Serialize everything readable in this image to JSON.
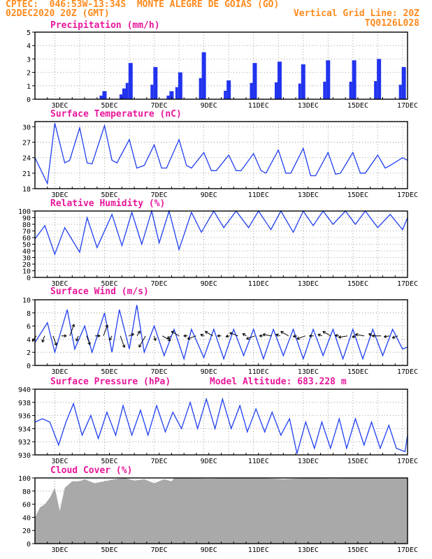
{
  "header": {
    "line1_left": "CPTEC:  046:53W-13:34S  MONTE ALEGRE DE GOIAS (GO)",
    "line2_left": "02DEC2020 20Z (GMT)",
    "line2_right": "Vertical Grid Line: 20Z",
    "line3_right": "TQ0126L028",
    "colors": {
      "header": "#ff8a1e",
      "titles": "#e8179b",
      "series": "#1f3ff0",
      "bars": "#2233ee",
      "cloud": "#a9a9a9",
      "arrows": "#000000"
    }
  },
  "panels": [
    {
      "title": "Precipitation (mm/h)"
    },
    {
      "title": "Surface Temperature (nC)"
    },
    {
      "title": "Relative Humidity (%)"
    },
    {
      "title": "Surface Wind (m/s)"
    },
    {
      "title": "Surface Pressure (hPa)",
      "extra": "Model Altitude: 683.228 m"
    },
    {
      "title": "Cloud Cover (%)"
    }
  ],
  "x_tick_labels": [
    "3DEC",
    "5DEC",
    "7DEC",
    "9DEC",
    "11DEC",
    "13DEC",
    "15DEC",
    "17DEC"
  ],
  "chart_data": [
    {
      "type": "bar",
      "title": "Precipitation (mm/h)",
      "ylim": [
        0,
        5
      ],
      "yticks": [
        "0",
        "1",
        "2",
        "3",
        "4",
        "5"
      ],
      "x": [
        4.8,
        5.6,
        5.85,
        6.85,
        7.5,
        7.85,
        8.8,
        9.8,
        10.85,
        11.85,
        12.8,
        13.8,
        14.85,
        15.85,
        16.85
      ],
      "values": [
        0.6,
        0.8,
        2.7,
        2.4,
        0.6,
        2.0,
        3.5,
        1.4,
        2.7,
        2.8,
        2.6,
        2.9,
        2.9,
        3.0,
        2.4
      ]
    },
    {
      "type": "line",
      "title": "Surface Temperature (nC)",
      "ylim": [
        18,
        31
      ],
      "yticks": [
        "18",
        "21",
        "24",
        "27",
        "30"
      ],
      "x": [
        2.0,
        2.25,
        2.5,
        2.8,
        3.2,
        3.4,
        3.8,
        4.1,
        4.3,
        4.8,
        5.1,
        5.3,
        5.8,
        6.1,
        6.4,
        6.8,
        7.1,
        7.3,
        7.8,
        8.1,
        8.3,
        8.8,
        9.1,
        9.3,
        9.8,
        10.1,
        10.3,
        10.8,
        11.1,
        11.3,
        11.8,
        12.1,
        12.3,
        12.8,
        13.1,
        13.3,
        13.8,
        14.1,
        14.3,
        14.8,
        15.1,
        15.3,
        15.8,
        16.1,
        16.3,
        16.8,
        17.0
      ],
      "values": [
        24,
        21.5,
        19,
        30.7,
        23,
        23.5,
        29.8,
        23,
        22.8,
        30.2,
        23.5,
        23,
        27.5,
        22,
        22.5,
        26.5,
        22,
        22,
        27.5,
        22.5,
        22,
        25,
        21.5,
        21.5,
        24.5,
        21.5,
        21.5,
        24.8,
        21.5,
        21,
        25.5,
        21,
        21,
        25.8,
        20.5,
        20.5,
        25,
        20.8,
        21,
        25,
        21,
        21,
        24.5,
        22,
        22.5,
        24,
        23.5
      ]
    },
    {
      "type": "line",
      "title": "Relative Humidity (%)",
      "ylim": [
        0,
        100
      ],
      "yticks": [
        "0",
        "10",
        "20",
        "30",
        "40",
        "50",
        "60",
        "70",
        "80",
        "90",
        "100"
      ],
      "x": [
        2.0,
        2.4,
        2.8,
        3.2,
        3.8,
        4.1,
        4.5,
        5.1,
        5.5,
        5.9,
        6.3,
        6.7,
        7.0,
        7.4,
        7.8,
        8.3,
        8.7,
        9.2,
        9.6,
        10.1,
        10.6,
        11.0,
        11.5,
        11.9,
        12.4,
        12.8,
        13.2,
        13.6,
        14.0,
        14.5,
        14.9,
        15.3,
        15.8,
        16.3,
        16.8,
        17.0
      ],
      "values": [
        58,
        78,
        35,
        75,
        38,
        90,
        45,
        95,
        48,
        98,
        50,
        100,
        52,
        100,
        42,
        98,
        68,
        100,
        75,
        100,
        75,
        100,
        72,
        100,
        68,
        100,
        78,
        100,
        80,
        100,
        80,
        100,
        75,
        95,
        72,
        90
      ]
    },
    {
      "type": "line",
      "title": "Surface Wind (m/s)",
      "ylim": [
        0,
        10
      ],
      "yticks": [
        "0",
        "2",
        "4",
        "6",
        "8",
        "10"
      ],
      "x": [
        2.0,
        2.5,
        2.8,
        3.3,
        3.6,
        4.0,
        4.3,
        4.8,
        5.1,
        5.4,
        5.8,
        6.1,
        6.4,
        6.8,
        7.2,
        7.6,
        8.0,
        8.3,
        8.8,
        9.2,
        9.6,
        10.0,
        10.4,
        10.8,
        11.2,
        11.6,
        12.0,
        12.4,
        12.8,
        13.2,
        13.6,
        14.0,
        14.4,
        14.8,
        15.2,
        15.6,
        16.0,
        16.4,
        16.8,
        17.0
      ],
      "values": [
        3.5,
        6.5,
        2.0,
        8.5,
        2.5,
        6.0,
        2.0,
        8.0,
        2.0,
        8.5,
        2.5,
        9.2,
        2.0,
        6.0,
        1.5,
        5.5,
        1.0,
        5.5,
        1.2,
        5.5,
        1.0,
        5.5,
        1.5,
        5.5,
        1.0,
        5.5,
        1.5,
        5.5,
        1.0,
        5.5,
        1.5,
        5.5,
        1.0,
        5.5,
        1.0,
        5.5,
        1.5,
        5.5,
        2.5,
        2.8
      ]
    },
    {
      "type": "line",
      "title": "Surface Pressure (hPa)",
      "ylim": [
        930,
        940
      ],
      "yticks": [
        "930",
        "932",
        "934",
        "936",
        "938",
        "940"
      ],
      "x": [
        2.0,
        2.3,
        2.6,
        2.95,
        3.25,
        3.55,
        3.9,
        4.25,
        4.55,
        4.9,
        5.25,
        5.55,
        5.9,
        6.25,
        6.55,
        6.9,
        7.25,
        7.55,
        7.9,
        8.25,
        8.55,
        8.9,
        9.25,
        9.55,
        9.9,
        10.25,
        10.55,
        10.9,
        11.25,
        11.55,
        11.9,
        12.25,
        12.55,
        12.9,
        13.25,
        13.55,
        13.9,
        14.25,
        14.55,
        14.9,
        15.25,
        15.55,
        15.9,
        16.25,
        16.55,
        16.9,
        17.0
      ],
      "values": [
        935,
        935.5,
        935,
        931.5,
        935,
        937.8,
        933,
        936,
        932.5,
        936.5,
        933,
        937.5,
        933,
        936.8,
        933,
        937.5,
        933.5,
        936.5,
        934,
        938,
        934,
        938.5,
        934,
        938.5,
        934,
        937.5,
        933.5,
        937,
        933.5,
        936.5,
        933,
        935.5,
        930.2,
        935,
        931,
        935,
        931,
        935.5,
        931,
        935.5,
        931.5,
        935,
        931,
        934.5,
        931,
        930.5,
        933
      ]
    },
    {
      "type": "area",
      "title": "Cloud Cover (%)",
      "ylim": [
        0,
        100
      ],
      "yticks": [
        "0",
        "20",
        "40",
        "60",
        "80",
        "100"
      ],
      "x": [
        2.0,
        2.2,
        2.4,
        2.6,
        2.8,
        3.0,
        3.2,
        3.5,
        3.8,
        4.0,
        4.4,
        4.8,
        5.2,
        5.6,
        6.0,
        6.4,
        6.8,
        7.2,
        7.5,
        7.6,
        8.0,
        9.0,
        10.0,
        11.0,
        12.0,
        13.0,
        14.0,
        15.0,
        16.0,
        17.0
      ],
      "values": [
        40,
        55,
        60,
        70,
        85,
        50,
        85,
        95,
        95,
        98,
        92,
        95,
        98,
        100,
        96,
        98,
        92,
        98,
        95,
        100,
        100,
        99,
        100,
        100,
        98,
        100,
        99,
        100,
        100,
        100
      ]
    }
  ],
  "wind_arrows_deg": [
    215,
    200,
    160,
    90,
    20,
    200,
    160,
    90,
    20,
    210,
    160,
    70,
    30,
    210,
    160,
    120,
    230,
    300,
    270,
    250,
    290,
    300,
    270,
    260,
    290,
    300,
    250,
    270,
    280,
    290,
    300,
    260,
    250,
    270,
    290,
    300,
    280,
    260,
    250,
    280,
    300,
    270,
    260,
    250
  ]
}
